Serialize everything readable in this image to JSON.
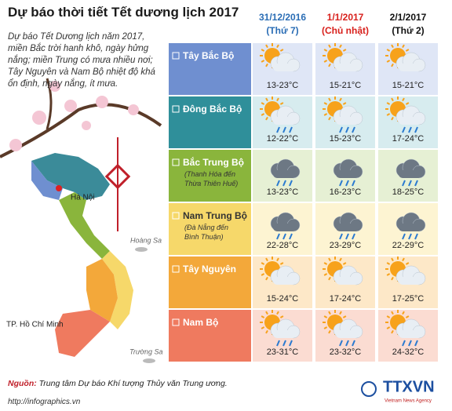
{
  "header": {
    "title": "Dự báo thời tiết Tết dương lịch 2017",
    "intro": "Dự báo Tết Dương lịch năm 2017, miền Bắc trời hanh khô, ngày hửng nắng; miền Trung có mưa nhiều nơi; Tây Nguyên và Nam Bộ nhiệt độ khá ổn định, ngày nắng, ít mưa."
  },
  "days": [
    {
      "date": "31/12/2016",
      "weekday": "(Thứ 7)"
    },
    {
      "date": "1/1/2017",
      "weekday": "(Chủ nhật)"
    },
    {
      "date": "2/1/2017",
      "weekday": "(Thứ 2)"
    }
  ],
  "regions": [
    {
      "name": "Tây Bắc Bộ",
      "temps": [
        "13-23°C",
        "15-21°C",
        "15-21°C"
      ]
    },
    {
      "name": "Đông Bắc Bộ",
      "temps": [
        "12-22°C",
        "15-23°C",
        "17-24°C"
      ]
    },
    {
      "name": "Bắc Trung Bộ",
      "note": "(Thanh Hóa đến Thừa Thiên Huế)",
      "temps": [
        "13-23°C",
        "16-23°C",
        "18-25°C"
      ]
    },
    {
      "name": "Nam Trung Bộ",
      "note": "(Đà Nẵng đến Bình Thuận)",
      "temps": [
        "22-28°C",
        "23-29°C",
        "22-29°C"
      ]
    },
    {
      "name": "Tây Nguyên",
      "temps": [
        "15-24°C",
        "17-24°C",
        "17-25°C"
      ]
    },
    {
      "name": "Nam Bộ",
      "temps": [
        "23-31°C",
        "23-32°C",
        "24-32°C"
      ]
    }
  ],
  "map": {
    "hanoi": "Hà Nội",
    "hoang_sa": "Hoàng Sa",
    "truong_sa": "Trường Sa",
    "hcm": "TP. Hồ Chí Minh"
  },
  "footer": {
    "source_label": "Nguồn:",
    "source_text": "Trung tâm Dự báo Khí tượng Thủy văn Trung ương.",
    "url": "http://infographics.vn",
    "logo": "TTXVN",
    "logo_sub": "Vietnam News Agency"
  }
}
